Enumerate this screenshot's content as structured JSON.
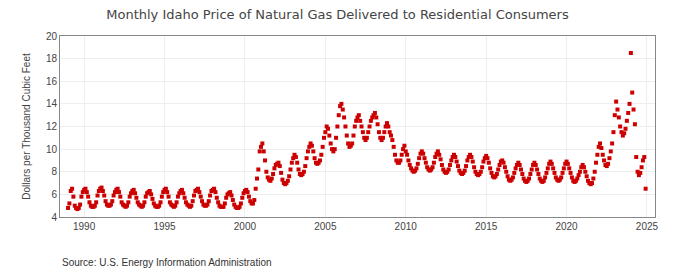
{
  "chart_data": {
    "type": "scatter",
    "title": "Monthly Idaho Price of Natural Gas Delivered to Residential Consumers",
    "y_label": "Dollars per Thousand Cubic Feet",
    "annotations": [
      "Source: U.S. Energy Information Administration"
    ],
    "color": "#cc0000",
    "marker": "square",
    "grid": true,
    "xlim": [
      1988.5,
      2025.5
    ],
    "xticks": [
      1990,
      1995,
      2000,
      2005,
      2010,
      2015,
      2020,
      2025
    ],
    "ylim": [
      4,
      20
    ],
    "yticks": [
      4,
      6,
      8,
      10,
      12,
      14,
      16,
      18,
      20
    ],
    "x": [
      1989.0,
      1989.083,
      1989.167,
      1989.25,
      1989.333,
      1989.417,
      1989.5,
      1989.583,
      1989.667,
      1989.75,
      1989.833,
      1989.917,
      1990.0,
      1990.083,
      1990.167,
      1990.25,
      1990.333,
      1990.417,
      1990.5,
      1990.583,
      1990.667,
      1990.75,
      1990.833,
      1990.917,
      1991.0,
      1991.083,
      1991.167,
      1991.25,
      1991.333,
      1991.417,
      1991.5,
      1991.583,
      1991.667,
      1991.75,
      1991.833,
      1991.917,
      1992.0,
      1992.083,
      1992.167,
      1992.25,
      1992.333,
      1992.417,
      1992.5,
      1992.583,
      1992.667,
      1992.75,
      1992.833,
      1992.917,
      1993.0,
      1993.083,
      1993.167,
      1993.25,
      1993.333,
      1993.417,
      1993.5,
      1993.583,
      1993.667,
      1993.75,
      1993.833,
      1993.917,
      1994.0,
      1994.083,
      1994.167,
      1994.25,
      1994.333,
      1994.417,
      1994.5,
      1994.583,
      1994.667,
      1994.75,
      1994.833,
      1994.917,
      1995.0,
      1995.083,
      1995.167,
      1995.25,
      1995.333,
      1995.417,
      1995.5,
      1995.583,
      1995.667,
      1995.75,
      1995.833,
      1995.917,
      1996.0,
      1996.083,
      1996.167,
      1996.25,
      1996.333,
      1996.417,
      1996.5,
      1996.583,
      1996.667,
      1996.75,
      1996.833,
      1996.917,
      1997.0,
      1997.083,
      1997.167,
      1997.25,
      1997.333,
      1997.417,
      1997.5,
      1997.583,
      1997.667,
      1997.75,
      1997.833,
      1997.917,
      1998.0,
      1998.083,
      1998.167,
      1998.25,
      1998.333,
      1998.417,
      1998.5,
      1998.583,
      1998.667,
      1998.75,
      1998.833,
      1998.917,
      1999.0,
      1999.083,
      1999.167,
      1999.25,
      1999.333,
      1999.417,
      1999.5,
      1999.583,
      1999.667,
      1999.75,
      1999.833,
      1999.917,
      2000.0,
      2000.083,
      2000.167,
      2000.25,
      2000.333,
      2000.417,
      2000.5,
      2000.583,
      2000.667,
      2000.75,
      2000.833,
      2000.917,
      2001.0,
      2001.083,
      2001.167,
      2001.25,
      2001.333,
      2001.417,
      2001.5,
      2001.583,
      2001.667,
      2001.75,
      2001.833,
      2001.917,
      2002.0,
      2002.083,
      2002.167,
      2002.25,
      2002.333,
      2002.417,
      2002.5,
      2002.583,
      2002.667,
      2002.75,
      2002.833,
      2002.917,
      2003.0,
      2003.083,
      2003.167,
      2003.25,
      2003.333,
      2003.417,
      2003.5,
      2003.583,
      2003.667,
      2003.75,
      2003.833,
      2003.917,
      2004.0,
      2004.083,
      2004.167,
      2004.25,
      2004.333,
      2004.417,
      2004.5,
      2004.583,
      2004.667,
      2004.75,
      2004.833,
      2004.917,
      2005.0,
      2005.083,
      2005.167,
      2005.25,
      2005.333,
      2005.417,
      2005.5,
      2005.583,
      2005.667,
      2005.75,
      2005.833,
      2005.917,
      2006.0,
      2006.083,
      2006.167,
      2006.25,
      2006.333,
      2006.417,
      2006.5,
      2006.583,
      2006.667,
      2006.75,
      2006.833,
      2006.917,
      2007.0,
      2007.083,
      2007.167,
      2007.25,
      2007.333,
      2007.417,
      2007.5,
      2007.583,
      2007.667,
      2007.75,
      2007.833,
      2007.917,
      2008.0,
      2008.083,
      2008.167,
      2008.25,
      2008.333,
      2008.417,
      2008.5,
      2008.583,
      2008.667,
      2008.75,
      2008.833,
      2008.917,
      2009.0,
      2009.083,
      2009.167,
      2009.25,
      2009.333,
      2009.417,
      2009.5,
      2009.583,
      2009.667,
      2009.75,
      2009.833,
      2009.917,
      2010.0,
      2010.083,
      2010.167,
      2010.25,
      2010.333,
      2010.417,
      2010.5,
      2010.583,
      2010.667,
      2010.75,
      2010.833,
      2010.917,
      2011.0,
      2011.083,
      2011.167,
      2011.25,
      2011.333,
      2011.417,
      2011.5,
      2011.583,
      2011.667,
      2011.75,
      2011.833,
      2011.917,
      2012.0,
      2012.083,
      2012.167,
      2012.25,
      2012.333,
      2012.417,
      2012.5,
      2012.583,
      2012.667,
      2012.75,
      2012.833,
      2012.917,
      2013.0,
      2013.083,
      2013.167,
      2013.25,
      2013.333,
      2013.417,
      2013.5,
      2013.583,
      2013.667,
      2013.75,
      2013.833,
      2013.917,
      2014.0,
      2014.083,
      2014.167,
      2014.25,
      2014.333,
      2014.417,
      2014.5,
      2014.583,
      2014.667,
      2014.75,
      2014.833,
      2014.917,
      2015.0,
      2015.083,
      2015.167,
      2015.25,
      2015.333,
      2015.417,
      2015.5,
      2015.583,
      2015.667,
      2015.75,
      2015.833,
      2015.917,
      2016.0,
      2016.083,
      2016.167,
      2016.25,
      2016.333,
      2016.417,
      2016.5,
      2016.583,
      2016.667,
      2016.75,
      2016.833,
      2016.917,
      2017.0,
      2017.083,
      2017.167,
      2017.25,
      2017.333,
      2017.417,
      2017.5,
      2017.583,
      2017.667,
      2017.75,
      2017.833,
      2017.917,
      2018.0,
      2018.083,
      2018.167,
      2018.25,
      2018.333,
      2018.417,
      2018.5,
      2018.583,
      2018.667,
      2018.75,
      2018.833,
      2018.917,
      2019.0,
      2019.083,
      2019.167,
      2019.25,
      2019.333,
      2019.417,
      2019.5,
      2019.583,
      2019.667,
      2019.75,
      2019.833,
      2019.917,
      2020.0,
      2020.083,
      2020.167,
      2020.25,
      2020.333,
      2020.417,
      2020.5,
      2020.583,
      2020.667,
      2020.75,
      2020.833,
      2020.917,
      2021.0,
      2021.083,
      2021.167,
      2021.25,
      2021.333,
      2021.417,
      2021.5,
      2021.583,
      2021.667,
      2021.75,
      2021.833,
      2021.917,
      2022.0,
      2022.083,
      2022.167,
      2022.25,
      2022.333,
      2022.417,
      2022.5,
      2022.583,
      2022.667,
      2022.75,
      2022.833,
      2022.917,
      2023.0,
      2023.083,
      2023.167,
      2023.25,
      2023.333,
      2023.417,
      2023.5,
      2023.583,
      2023.667,
      2023.75,
      2023.833,
      2023.917,
      2024.0,
      2024.083,
      2024.167,
      2024.25,
      2024.333,
      2024.417,
      2024.5,
      2024.583,
      2024.667,
      2024.75,
      2024.833,
      2024.917
    ],
    "values": [
      4.8,
      5.2,
      6.3,
      6.5,
      5.8,
      5.0,
      4.8,
      4.7,
      4.8,
      5.1,
      5.8,
      6.2,
      6.4,
      6.5,
      6.2,
      5.8,
      5.3,
      5.0,
      4.9,
      4.9,
      5.0,
      5.3,
      5.9,
      6.3,
      6.5,
      6.6,
      6.3,
      5.9,
      5.4,
      5.1,
      5.0,
      5.0,
      5.1,
      5.4,
      5.9,
      6.2,
      6.4,
      6.5,
      6.2,
      5.8,
      5.3,
      5.1,
      5.0,
      4.9,
      5.0,
      5.3,
      5.8,
      6.1,
      6.3,
      6.4,
      6.1,
      5.7,
      5.3,
      5.1,
      5.0,
      4.9,
      5.0,
      5.3,
      5.8,
      6.1,
      6.2,
      6.3,
      6.0,
      5.6,
      5.2,
      5.0,
      4.9,
      4.9,
      5.0,
      5.3,
      5.8,
      6.2,
      6.4,
      6.5,
      6.2,
      5.8,
      5.3,
      5.1,
      5.0,
      4.9,
      5.0,
      5.3,
      5.8,
      6.1,
      6.3,
      6.4,
      6.1,
      5.7,
      5.3,
      5.1,
      5.0,
      4.9,
      5.0,
      5.4,
      5.9,
      6.3,
      6.4,
      6.5,
      6.2,
      5.8,
      5.4,
      5.1,
      5.0,
      5.0,
      5.1,
      5.4,
      5.9,
      6.3,
      6.4,
      6.5,
      6.2,
      5.7,
      5.3,
      5.0,
      4.9,
      4.9,
      4.9,
      5.2,
      5.7,
      6.0,
      6.1,
      6.2,
      5.9,
      5.5,
      5.1,
      4.9,
      4.8,
      4.8,
      4.9,
      5.2,
      5.7,
      6.1,
      6.3,
      6.4,
      6.2,
      5.8,
      5.4,
      5.2,
      5.2,
      5.5,
      6.5,
      7.4,
      8.2,
      9.8,
      10.2,
      10.5,
      9.8,
      9.0,
      8.0,
      7.5,
      7.3,
      7.2,
      7.4,
      7.8,
      8.3,
      8.6,
      8.7,
      8.8,
      8.5,
      7.9,
      7.3,
      7.0,
      6.9,
      7.0,
      7.2,
      7.6,
      8.2,
      8.8,
      9.2,
      9.5,
      9.3,
      8.8,
      8.2,
      7.8,
      7.7,
      7.8,
      8.0,
      8.5,
      9.2,
      9.8,
      10.2,
      10.5,
      10.3,
      9.8,
      9.2,
      8.8,
      8.7,
      8.8,
      9.0,
      9.5,
      10.2,
      11.0,
      11.5,
      12.0,
      11.8,
      11.2,
      10.5,
      10.0,
      9.8,
      10.0,
      11.0,
      12.0,
      13.0,
      13.8,
      14.0,
      13.5,
      12.8,
      12.0,
      11.2,
      10.5,
      10.2,
      10.3,
      10.5,
      11.2,
      12.0,
      12.5,
      12.8,
      13.0,
      12.5,
      12.0,
      11.5,
      11.0,
      10.8,
      11.0,
      11.5,
      12.0,
      12.5,
      12.8,
      13.0,
      13.2,
      12.8,
      12.2,
      11.5,
      11.0,
      10.8,
      11.0,
      11.5,
      12.0,
      12.3,
      12.0,
      11.5,
      11.2,
      10.8,
      10.2,
      9.5,
      9.0,
      8.8,
      8.8,
      9.0,
      9.5,
      10.0,
      10.3,
      9.8,
      9.5,
      9.0,
      8.6,
      8.3,
      8.1,
      8.0,
      8.1,
      8.3,
      8.7,
      9.2,
      9.6,
      9.8,
      9.6,
      9.2,
      8.8,
      8.4,
      8.2,
      8.1,
      8.2,
      8.4,
      8.8,
      9.3,
      9.6,
      9.8,
      9.5,
      9.1,
      8.6,
      8.2,
      8.0,
      7.9,
      8.0,
      8.2,
      8.6,
      9.0,
      9.3,
      9.5,
      9.3,
      8.9,
      8.5,
      8.1,
      7.9,
      7.8,
      7.9,
      8.1,
      8.5,
      9.0,
      9.3,
      9.5,
      9.3,
      8.9,
      8.4,
      8.0,
      7.8,
      7.7,
      7.8,
      8.0,
      8.4,
      8.9,
      9.2,
      9.4,
      9.2,
      8.8,
      8.3,
      7.9,
      7.6,
      7.5,
      7.6,
      7.8,
      8.2,
      8.6,
      8.9,
      9.0,
      8.8,
      8.4,
      8.0,
      7.6,
      7.3,
      7.2,
      7.3,
      7.5,
      7.9,
      8.3,
      8.6,
      8.8,
      8.6,
      8.2,
      7.8,
      7.4,
      7.2,
      7.1,
      7.2,
      7.4,
      7.8,
      8.2,
      8.6,
      8.8,
      8.6,
      8.2,
      7.8,
      7.4,
      7.2,
      7.1,
      7.2,
      7.5,
      7.9,
      8.3,
      8.7,
      8.9,
      8.7,
      8.3,
      7.9,
      7.5,
      7.3,
      7.2,
      7.3,
      7.5,
      7.9,
      8.3,
      8.7,
      8.9,
      8.7,
      8.3,
      7.9,
      7.5,
      7.2,
      7.1,
      7.2,
      7.4,
      7.7,
      8.0,
      8.4,
      8.6,
      8.4,
      8.0,
      7.6,
      7.2,
      7.0,
      6.9,
      7.0,
      7.4,
      8.0,
      8.8,
      9.5,
      10.2,
      10.5,
      10.1,
      9.5,
      9.0,
      8.6,
      8.5,
      8.7,
      9.2,
      9.8,
      10.5,
      11.5,
      13.0,
      14.2,
      13.5,
      12.8,
      12.0,
      11.5,
      11.2,
      11.4,
      11.8,
      12.5,
      13.2,
      14.0,
      18.5,
      15.0,
      13.5,
      12.2,
      9.3,
      8.0,
      7.7,
      7.9,
      8.4,
      9.0,
      9.3,
      6.5
    ]
  }
}
